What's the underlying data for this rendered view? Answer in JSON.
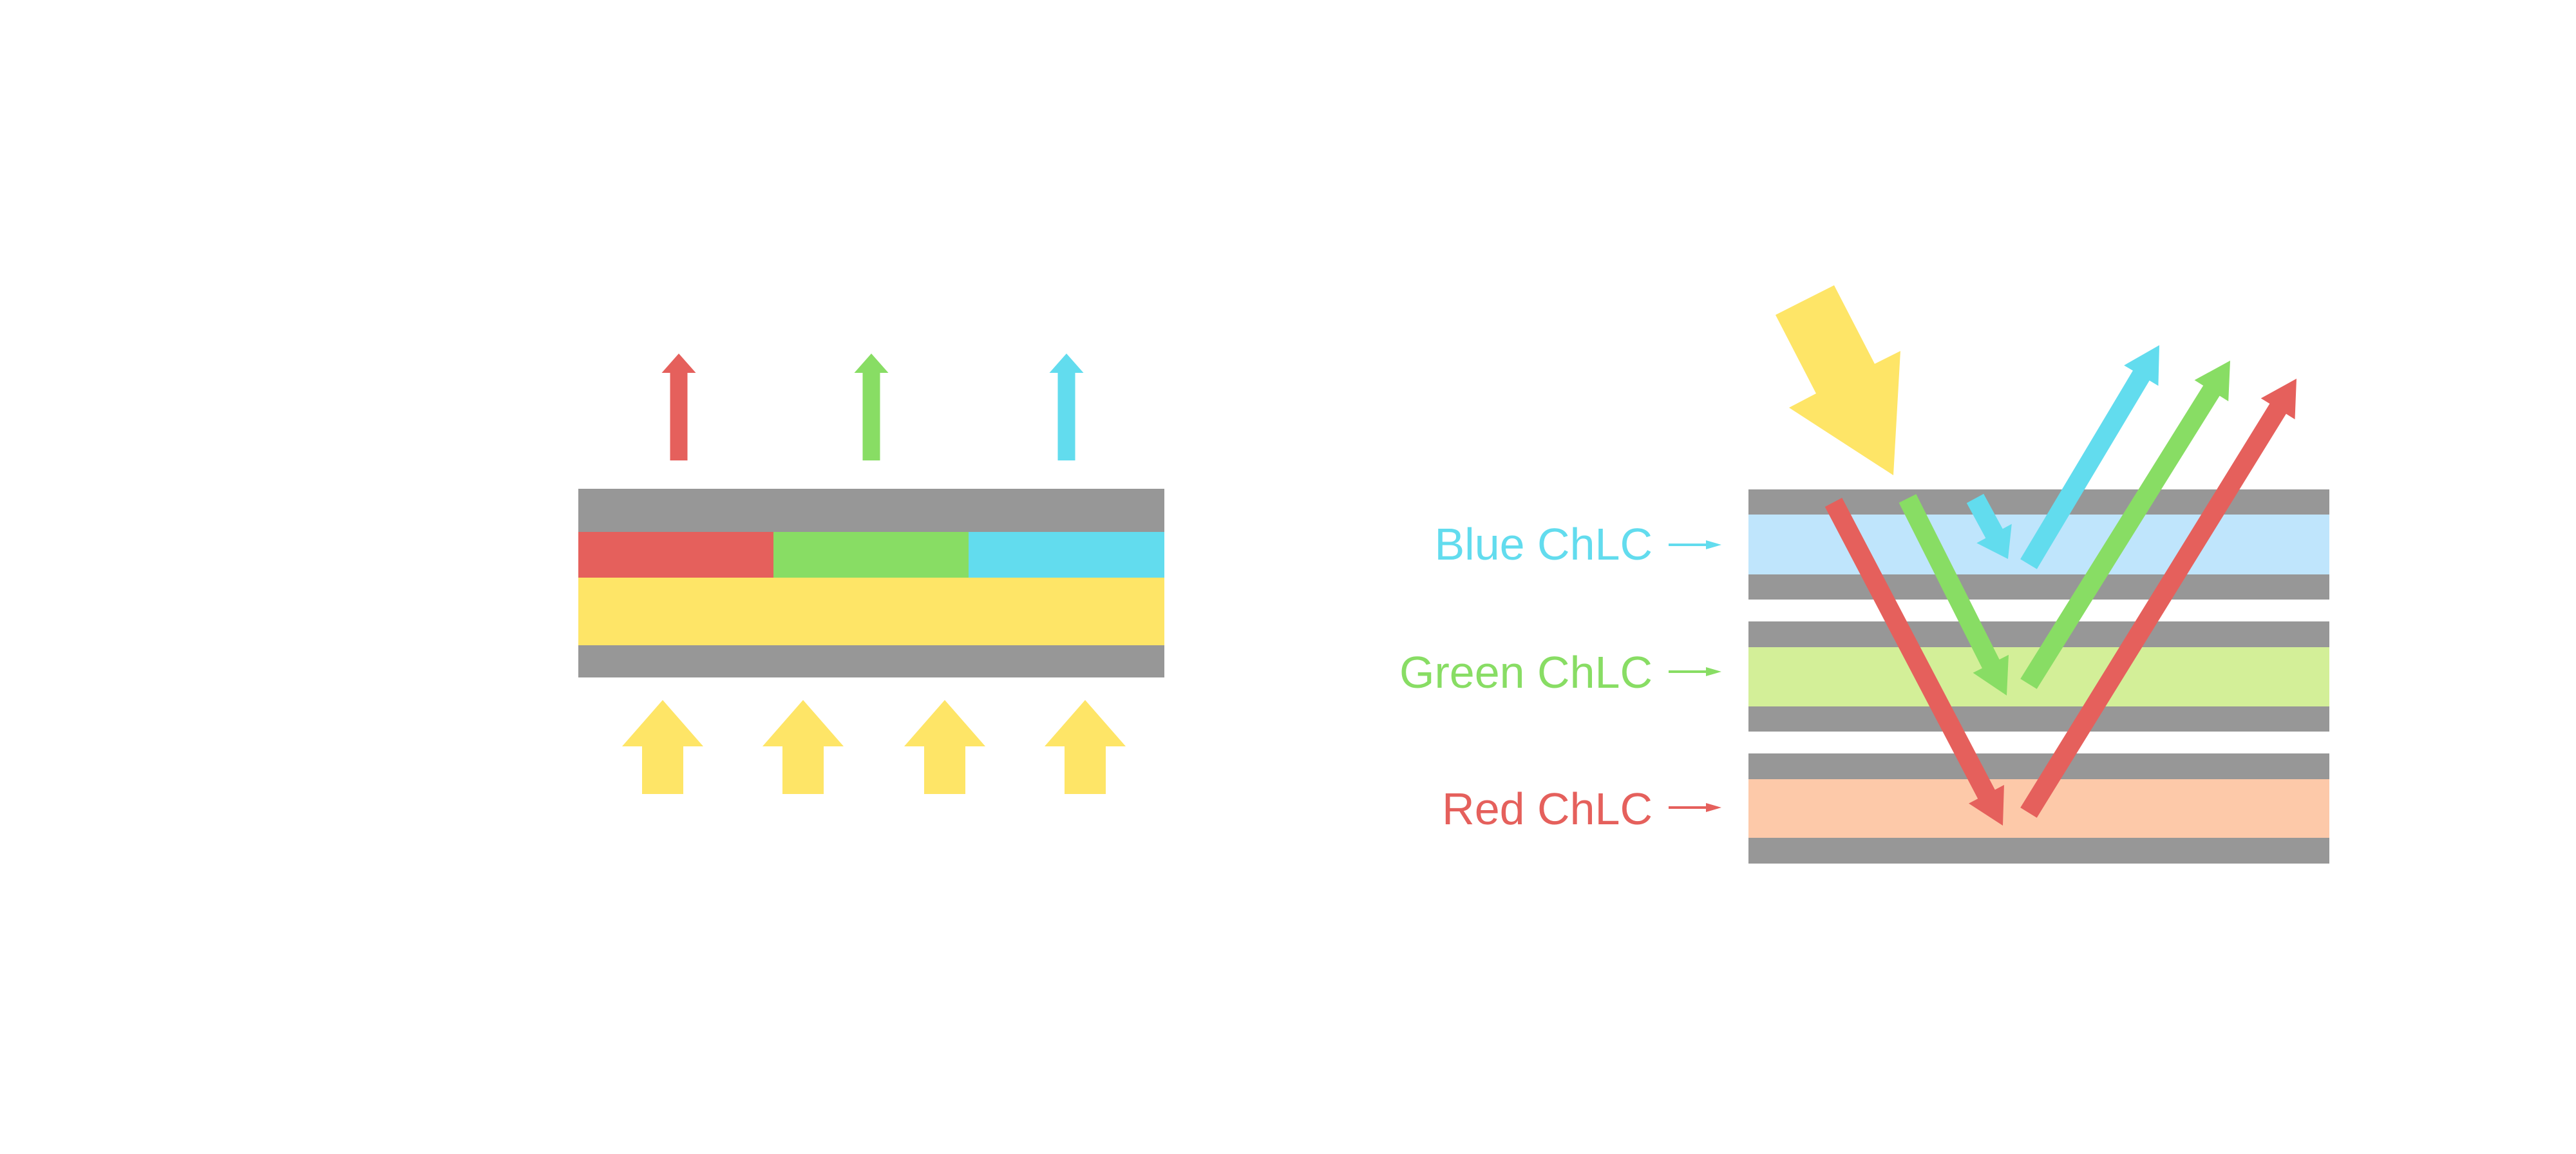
{
  "colors": {
    "red": "#e5605c",
    "green": "#88dd64",
    "blue": "#62dcee",
    "yellow": "#fee567",
    "gray": "#979797",
    "blue_layer": "#bfe5fc",
    "green_layer": "#d3ef98",
    "red_layer": "#fdc9a9"
  },
  "left_diagram": {
    "filter_segments": [
      "red",
      "green",
      "blue"
    ],
    "emitted_arrows": [
      "red",
      "green",
      "blue"
    ],
    "backlight_arrow_count": 4
  },
  "right_diagram": {
    "layers": [
      {
        "label": "Blue ChLC",
        "color": "blue"
      },
      {
        "label": "Green ChLC",
        "color": "green"
      },
      {
        "label": "Red ChLC",
        "color": "red"
      }
    ]
  }
}
